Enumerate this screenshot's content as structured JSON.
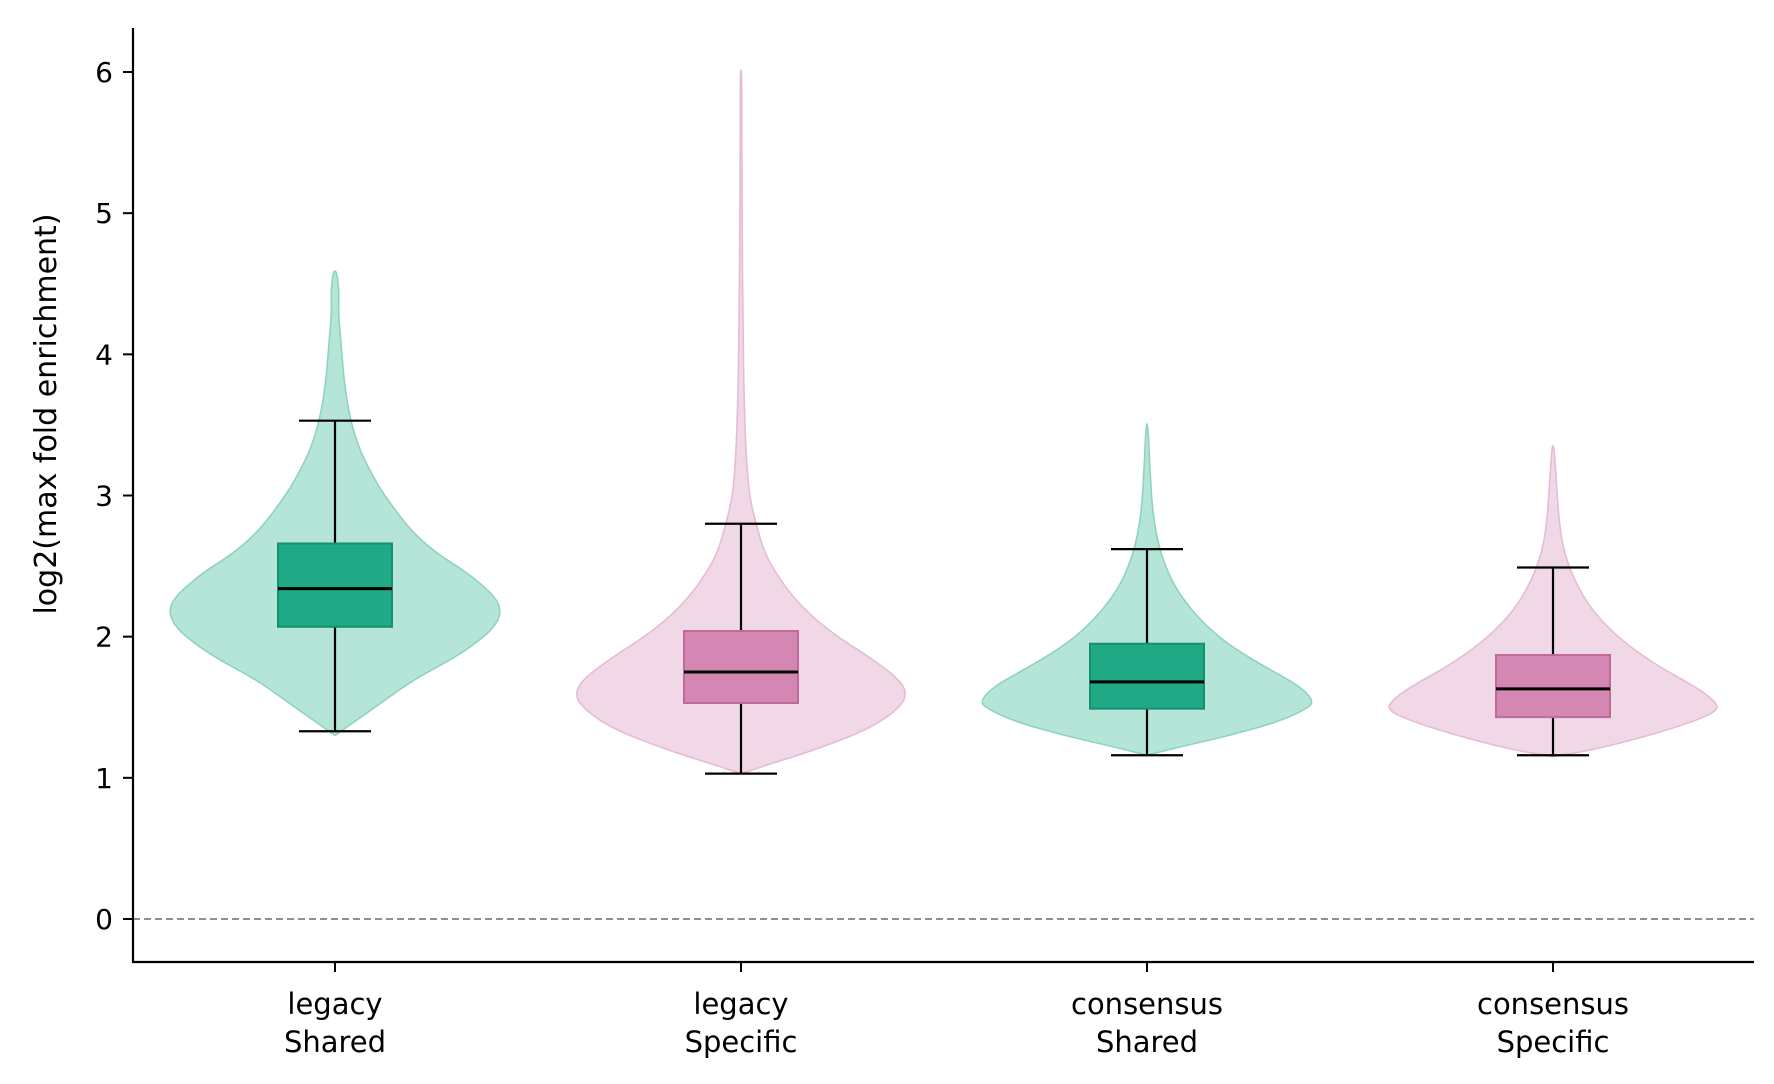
{
  "chart_data": {
    "type": "violin",
    "ylabel": "log2(max fold enrichment)",
    "ylim": [
      -0.3,
      6.3
    ],
    "yticks": [
      0,
      1,
      2,
      3,
      4,
      5,
      6
    ],
    "reference_line": {
      "y": 0,
      "style": "dashed",
      "color": "#808080"
    },
    "grid": false,
    "categories": [
      {
        "line1": "legacy",
        "line2": "Shared"
      },
      {
        "line1": "legacy",
        "line2": "Specific"
      },
      {
        "line1": "consensus",
        "line2": "Shared"
      },
      {
        "line1": "consensus",
        "line2": "Specific"
      }
    ],
    "groups": [
      {
        "violin_color": "#b5e5d8",
        "violin_edge": "#8fd3bf",
        "box_color": "#1fa984",
        "box_edge": "#179070",
        "whisker_low": 1.33,
        "q1": 2.07,
        "median": 2.34,
        "q3": 2.66,
        "whisker_high": 3.53,
        "density": [
          [
            1.3,
            0.0
          ],
          [
            1.4,
            0.12
          ],
          [
            1.55,
            0.3
          ],
          [
            1.7,
            0.48
          ],
          [
            1.85,
            0.72
          ],
          [
            2.0,
            0.9
          ],
          [
            2.1,
            0.98
          ],
          [
            2.2,
            1.0
          ],
          [
            2.3,
            0.95
          ],
          [
            2.45,
            0.8
          ],
          [
            2.6,
            0.6
          ],
          [
            2.75,
            0.46
          ],
          [
            2.9,
            0.36
          ],
          [
            3.05,
            0.27
          ],
          [
            3.2,
            0.2
          ],
          [
            3.35,
            0.14
          ],
          [
            3.55,
            0.09
          ],
          [
            3.8,
            0.055
          ],
          [
            4.1,
            0.035
          ],
          [
            4.3,
            0.02
          ],
          [
            4.45,
            0.025
          ],
          [
            4.58,
            0.01
          ],
          [
            4.59,
            0.0
          ]
        ]
      },
      {
        "violin_color": "#f0d8e6",
        "violin_edge": "#e6bcd4",
        "box_color": "#d387b2",
        "box_edge": "#c06a9c",
        "whisker_low": 1.03,
        "q1": 1.53,
        "median": 1.75,
        "q3": 2.04,
        "whisker_high": 2.8,
        "density": [
          [
            1.03,
            0.0
          ],
          [
            1.1,
            0.18
          ],
          [
            1.2,
            0.45
          ],
          [
            1.35,
            0.78
          ],
          [
            1.5,
            0.96
          ],
          [
            1.6,
            1.0
          ],
          [
            1.7,
            0.95
          ],
          [
            1.85,
            0.78
          ],
          [
            2.0,
            0.58
          ],
          [
            2.15,
            0.42
          ],
          [
            2.3,
            0.3
          ],
          [
            2.45,
            0.21
          ],
          [
            2.6,
            0.14
          ],
          [
            2.8,
            0.09
          ],
          [
            3.0,
            0.05
          ],
          [
            3.3,
            0.03
          ],
          [
            3.7,
            0.018
          ],
          [
            4.2,
            0.012
          ],
          [
            4.8,
            0.007
          ],
          [
            5.5,
            0.005
          ],
          [
            6.0,
            0.004
          ],
          [
            6.01,
            0.0
          ]
        ]
      },
      {
        "violin_color": "#b5e5d8",
        "violin_edge": "#8fd3bf",
        "box_color": "#1fa984",
        "box_edge": "#179070",
        "whisker_low": 1.16,
        "q1": 1.49,
        "median": 1.68,
        "q3": 1.95,
        "whisker_high": 2.62,
        "density": [
          [
            1.16,
            0.0
          ],
          [
            1.22,
            0.2
          ],
          [
            1.3,
            0.5
          ],
          [
            1.4,
            0.8
          ],
          [
            1.5,
            0.98
          ],
          [
            1.55,
            1.0
          ],
          [
            1.65,
            0.92
          ],
          [
            1.78,
            0.72
          ],
          [
            1.92,
            0.52
          ],
          [
            2.05,
            0.38
          ],
          [
            2.2,
            0.26
          ],
          [
            2.35,
            0.17
          ],
          [
            2.5,
            0.11
          ],
          [
            2.65,
            0.07
          ],
          [
            2.8,
            0.045
          ],
          [
            2.95,
            0.03
          ],
          [
            3.1,
            0.022
          ],
          [
            3.25,
            0.015
          ],
          [
            3.45,
            0.008
          ],
          [
            3.51,
            0.0
          ]
        ]
      },
      {
        "violin_color": "#f0d8e6",
        "violin_edge": "#e6bcd4",
        "box_color": "#d387b2",
        "box_edge": "#c06a9c",
        "whisker_low": 1.16,
        "q1": 1.43,
        "median": 1.63,
        "q3": 1.87,
        "whisker_high": 2.49,
        "density": [
          [
            1.15,
            0.0
          ],
          [
            1.2,
            0.25
          ],
          [
            1.3,
            0.58
          ],
          [
            1.4,
            0.85
          ],
          [
            1.48,
            1.0
          ],
          [
            1.55,
            0.97
          ],
          [
            1.65,
            0.85
          ],
          [
            1.8,
            0.62
          ],
          [
            1.95,
            0.44
          ],
          [
            2.1,
            0.3
          ],
          [
            2.25,
            0.2
          ],
          [
            2.4,
            0.13
          ],
          [
            2.55,
            0.08
          ],
          [
            2.7,
            0.05
          ],
          [
            2.85,
            0.035
          ],
          [
            3.0,
            0.025
          ],
          [
            3.2,
            0.015
          ],
          [
            3.34,
            0.006
          ],
          [
            3.35,
            0.0
          ]
        ]
      }
    ]
  }
}
